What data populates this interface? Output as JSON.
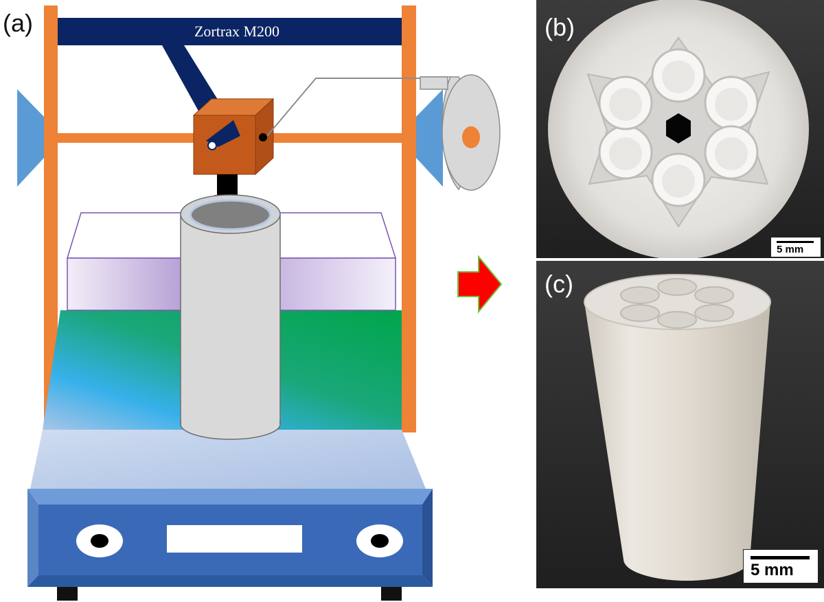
{
  "panels": {
    "a": {
      "label": "(a)",
      "printer_name": "Zortrax M200"
    },
    "b": {
      "label": "(b)",
      "scale_bar": "5 mm"
    },
    "c": {
      "label": "(c)",
      "scale_bar": "5 mm"
    }
  },
  "colors": {
    "frame_orange": "#ee8236",
    "gantry_navy": "#0b2463",
    "extruder_brown": "#c35a1c",
    "side_blue": "#5b9bd5",
    "base_blue": "#3a6ab7",
    "arrow_red": "#ff0000",
    "photo_background": "#2a2a2a",
    "print_white": "#e8e6e2"
  },
  "icons": {
    "transition_arrow": "right-arrow-icon",
    "filament_spool": "spool-icon"
  }
}
